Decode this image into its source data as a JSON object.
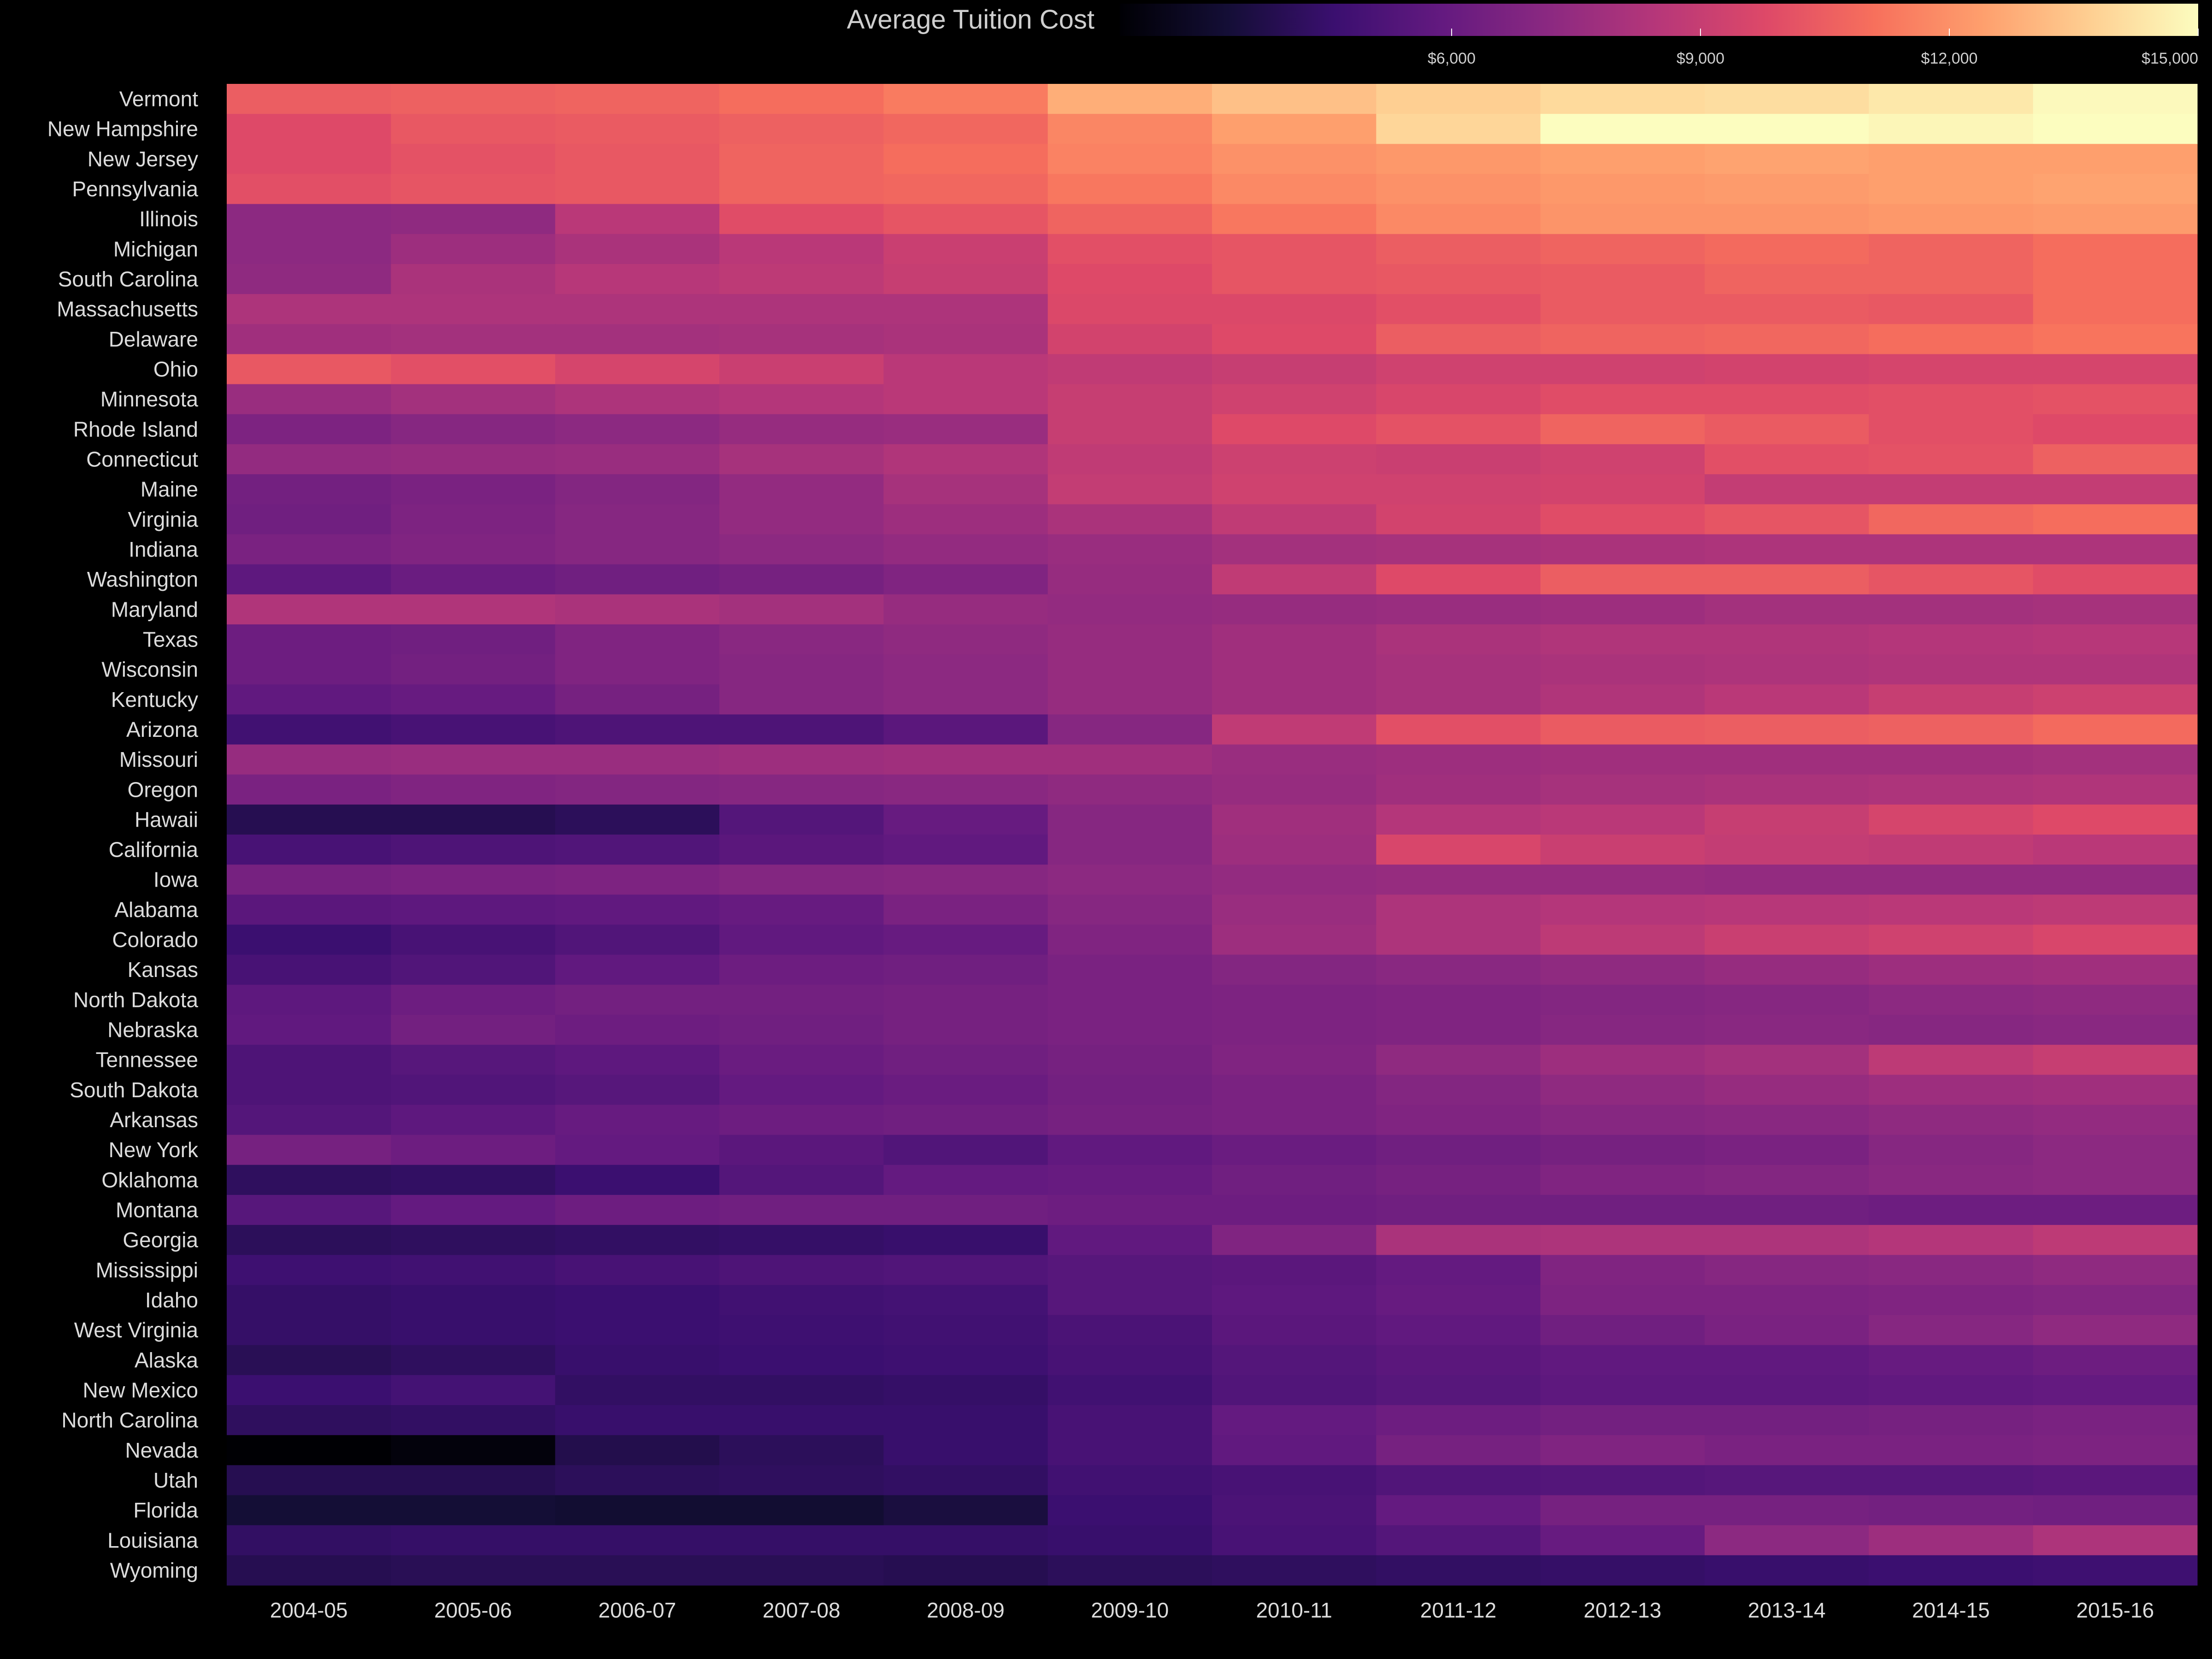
{
  "chart_data": {
    "type": "heatmap",
    "legend": {
      "title": "Average Tuition Cost",
      "ticks": [
        6000,
        9000,
        12000,
        15000
      ],
      "tick_labels": [
        "$6,000",
        "$9,000",
        "$12,000",
        "$15,000"
      ],
      "range": [
        2000,
        15000
      ],
      "placement": "top"
    },
    "colormap": [
      "#000004",
      "#140e36",
      "#3b0f70",
      "#641a80",
      "#8c2981",
      "#b73779",
      "#de4968",
      "#f7705c",
      "#fe9f6d",
      "#fecf92",
      "#fcfdbf"
    ],
    "columns": [
      "2004-05",
      "2005-06",
      "2006-07",
      "2007-08",
      "2008-09",
      "2009-10",
      "2010-11",
      "2011-12",
      "2012-13",
      "2013-14",
      "2014-15",
      "2015-16"
    ],
    "rows": [
      {
        "state": "Vermont",
        "values": [
          10500,
          10600,
          10700,
          11000,
          11400,
          12800,
          13300,
          13700,
          14000,
          14100,
          14400,
          14900
        ]
      },
      {
        "state": "New Hampshire",
        "values": [
          9800,
          10300,
          10400,
          10600,
          10800,
          11700,
          12400,
          13900,
          15100,
          15000,
          14800,
          15000
        ]
      },
      {
        "state": "New Jersey",
        "values": [
          9800,
          10100,
          10300,
          10700,
          11000,
          11600,
          12000,
          12200,
          12400,
          12500,
          12400,
          12400
        ]
      },
      {
        "state": "Pennsylvania",
        "values": [
          10000,
          10200,
          10300,
          10700,
          10800,
          11300,
          11800,
          12000,
          12200,
          12300,
          12400,
          12500
        ]
      },
      {
        "state": "Illinois",
        "values": [
          7200,
          7300,
          8600,
          9900,
          10200,
          10700,
          11300,
          11800,
          12100,
          12100,
          12200,
          12300
        ]
      },
      {
        "state": "Michigan",
        "values": [
          7200,
          7700,
          8100,
          8600,
          9100,
          10000,
          10200,
          10500,
          10700,
          10900,
          10700,
          11000
        ]
      },
      {
        "state": "South Carolina",
        "values": [
          7300,
          8100,
          8500,
          8700,
          9000,
          9800,
          10200,
          10300,
          10400,
          10700,
          10700,
          11000
        ]
      },
      {
        "state": "Massachusetts",
        "values": [
          8200,
          8200,
          8200,
          8200,
          8200,
          9700,
          9700,
          10000,
          10400,
          10400,
          10300,
          11000
        ]
      },
      {
        "state": "Delaware",
        "values": [
          7800,
          7900,
          7900,
          8000,
          8100,
          9400,
          9800,
          10500,
          10700,
          10800,
          11000,
          11200
        ]
      },
      {
        "state": "Ohio",
        "values": [
          10300,
          10000,
          9500,
          9100,
          8600,
          8800,
          9000,
          9300,
          9300,
          9400,
          9500,
          9500
        ]
      },
      {
        "state": "Minnesota",
        "values": [
          7600,
          7900,
          8200,
          8400,
          8600,
          9000,
          9300,
          9600,
          9900,
          9900,
          10000,
          10100
        ]
      },
      {
        "state": "Rhode Island",
        "values": [
          6700,
          7000,
          7200,
          7500,
          7600,
          9000,
          9800,
          10100,
          10700,
          10400,
          10000,
          9800
        ]
      },
      {
        "state": "Connecticut",
        "values": [
          7400,
          7500,
          7600,
          8000,
          8300,
          8800,
          9200,
          9100,
          9300,
          10000,
          10100,
          10600
        ]
      },
      {
        "state": "Maine",
        "values": [
          6400,
          6600,
          6900,
          7400,
          8000,
          8900,
          9300,
          9300,
          9400,
          8900,
          8900,
          8900
        ]
      },
      {
        "state": "Virginia",
        "values": [
          6300,
          6700,
          7000,
          7400,
          7700,
          8100,
          8800,
          9400,
          9900,
          10200,
          10800,
          11000
        ]
      },
      {
        "state": "Indiana",
        "values": [
          6600,
          6800,
          7000,
          7200,
          7400,
          7600,
          7900,
          8000,
          8100,
          8200,
          8200,
          8200
        ]
      },
      {
        "state": "Washington",
        "values": [
          5700,
          6100,
          6300,
          6500,
          6800,
          7500,
          8800,
          9800,
          10500,
          10500,
          10200,
          9900
        ]
      },
      {
        "state": "Maryland",
        "values": [
          8300,
          8300,
          8100,
          7900,
          7500,
          7400,
          7500,
          7600,
          7700,
          7900,
          7900,
          8000
        ]
      },
      {
        "state": "Texas",
        "values": [
          6200,
          6300,
          6800,
          7100,
          7300,
          7500,
          7800,
          8100,
          8300,
          8300,
          8400,
          8500
        ]
      },
      {
        "state": "Wisconsin",
        "values": [
          6200,
          6400,
          6800,
          7000,
          7200,
          7500,
          7800,
          8000,
          8100,
          8200,
          8300,
          8300
        ]
      },
      {
        "state": "Kentucky",
        "values": [
          5800,
          6000,
          6500,
          7000,
          7200,
          7500,
          7800,
          8000,
          8300,
          8600,
          9000,
          9200
        ]
      },
      {
        "state": "Arizona",
        "values": [
          4800,
          5000,
          5200,
          5200,
          5600,
          7000,
          8800,
          10000,
          10400,
          10500,
          10600,
          10900
        ]
      },
      {
        "state": "Missouri",
        "values": [
          7500,
          7600,
          7600,
          7700,
          7800,
          7800,
          7600,
          7700,
          7800,
          7800,
          7800,
          7900
        ]
      },
      {
        "state": "Oregon",
        "values": [
          6600,
          6800,
          6900,
          7000,
          7100,
          7300,
          7500,
          7800,
          8000,
          8100,
          8200,
          8300
        ]
      },
      {
        "state": "Hawaii",
        "values": [
          3900,
          3900,
          4100,
          5400,
          6000,
          7000,
          7800,
          8400,
          8600,
          9000,
          9500,
          9800
        ]
      },
      {
        "state": "California",
        "values": [
          5000,
          5200,
          5300,
          5600,
          5800,
          7000,
          7700,
          9600,
          9100,
          8900,
          8800,
          8600
        ]
      },
      {
        "state": "Iowa",
        "values": [
          6500,
          6600,
          6700,
          6900,
          7000,
          7200,
          7400,
          7500,
          7500,
          7400,
          7400,
          7400
        ]
      },
      {
        "state": "Alabama",
        "values": [
          5600,
          5700,
          5800,
          6000,
          6600,
          7000,
          7600,
          8200,
          8400,
          8500,
          8600,
          8700
        ]
      },
      {
        "state": "Colorado",
        "values": [
          4600,
          5000,
          5300,
          5800,
          6000,
          6800,
          7700,
          8200,
          8700,
          9100,
          9300,
          9600
        ]
      },
      {
        "state": "Kansas",
        "values": [
          5000,
          5300,
          5800,
          6200,
          6300,
          6600,
          6900,
          7100,
          7300,
          7500,
          7700,
          7800
        ]
      },
      {
        "state": "North Dakota",
        "values": [
          5700,
          6200,
          6400,
          6400,
          6500,
          6600,
          6700,
          6800,
          6900,
          7000,
          7200,
          7300
        ]
      },
      {
        "state": "Nebraska",
        "values": [
          5800,
          6400,
          6200,
          6300,
          6500,
          6600,
          6700,
          6800,
          7000,
          7100,
          7000,
          7100
        ]
      },
      {
        "state": "Tennessee",
        "values": [
          5200,
          5500,
          5700,
          6100,
          6300,
          6500,
          6800,
          7300,
          7700,
          7900,
          8700,
          9000
        ]
      },
      {
        "state": "South Dakota",
        "values": [
          5200,
          5300,
          5500,
          5900,
          6100,
          6400,
          6600,
          6900,
          7300,
          7500,
          7700,
          7800
        ]
      },
      {
        "state": "Arkansas",
        "values": [
          5400,
          5700,
          6000,
          6200,
          6300,
          6500,
          6600,
          6800,
          7000,
          7100,
          7300,
          7400
        ]
      },
      {
        "state": "New York",
        "values": [
          6500,
          6200,
          5900,
          5600,
          5300,
          5800,
          6100,
          6300,
          6500,
          6600,
          7000,
          7200
        ]
      },
      {
        "state": "Oklahoma",
        "values": [
          4200,
          4300,
          4600,
          5400,
          5900,
          6000,
          6300,
          6500,
          6800,
          6900,
          7100,
          7200
        ]
      },
      {
        "state": "Montana",
        "values": [
          5500,
          5900,
          6200,
          6300,
          6300,
          6200,
          6200,
          6300,
          6300,
          6300,
          6200,
          6200
        ]
      },
      {
        "state": "Georgia",
        "values": [
          4100,
          4200,
          4300,
          4400,
          4500,
          5800,
          6800,
          8100,
          8200,
          8200,
          8400,
          8700
        ]
      },
      {
        "state": "Mississippi",
        "values": [
          4700,
          4800,
          5000,
          5200,
          5300,
          5500,
          5600,
          5900,
          6800,
          7000,
          7100,
          7300
        ]
      },
      {
        "state": "Idaho",
        "values": [
          4400,
          4500,
          4600,
          4800,
          4900,
          5500,
          5700,
          6000,
          6700,
          6700,
          6800,
          6900
        ]
      },
      {
        "state": "West Virginia",
        "values": [
          4400,
          4500,
          4600,
          4700,
          4800,
          5100,
          5600,
          5800,
          6300,
          6600,
          7000,
          7300
        ]
      },
      {
        "state": "Alaska",
        "values": [
          4000,
          4200,
          4500,
          4600,
          4700,
          5000,
          5400,
          5600,
          5800,
          5800,
          6000,
          6200
        ]
      },
      {
        "state": "New Mexico",
        "values": [
          4600,
          4900,
          4300,
          4300,
          4400,
          4800,
          5300,
          5500,
          5700,
          5700,
          5800,
          5900
        ]
      },
      {
        "state": "North Carolina",
        "values": [
          4200,
          4300,
          4500,
          4500,
          4500,
          5000,
          5900,
          6200,
          6400,
          6400,
          6500,
          6600
        ]
      },
      {
        "state": "Nevada",
        "values": [
          2000,
          2200,
          3800,
          4100,
          4500,
          5000,
          5800,
          6500,
          6800,
          6600,
          6600,
          6700
        ]
      },
      {
        "state": "Utah",
        "values": [
          3900,
          3900,
          4100,
          4200,
          4300,
          4800,
          5000,
          5300,
          5400,
          5500,
          5500,
          5600
        ]
      },
      {
        "state": "Florida",
        "values": [
          3300,
          3300,
          3200,
          3200,
          3500,
          4600,
          5100,
          5900,
          6500,
          6500,
          6400,
          6300
        ]
      },
      {
        "state": "Louisiana",
        "values": [
          4300,
          4400,
          4400,
          4400,
          4400,
          4500,
          5000,
          5400,
          6000,
          7200,
          7700,
          8200
        ]
      },
      {
        "state": "Wyoming",
        "values": [
          3900,
          4000,
          4000,
          4000,
          3900,
          4100,
          4200,
          4300,
          4400,
          4500,
          4600,
          4700
        ]
      }
    ]
  }
}
